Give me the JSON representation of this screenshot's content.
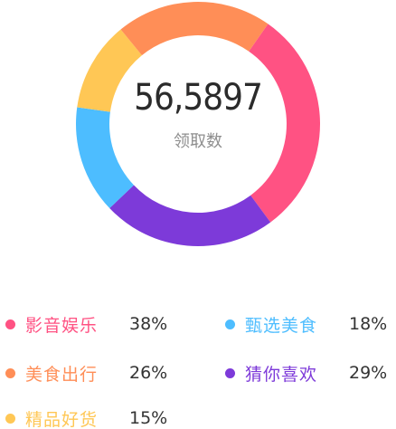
{
  "total": {
    "value": "56,5897",
    "label": "领取数"
  },
  "chart_data": {
    "type": "pie",
    "categories": [
      "影音娱乐",
      "甄选美食",
      "美食出行",
      "猜你喜欢",
      "精品好货"
    ],
    "values": [
      38,
      18,
      26,
      29,
      15
    ],
    "value_labels": [
      "38%",
      "18%",
      "26%",
      "29%",
      "15%"
    ],
    "colors": [
      "#ff5283",
      "#4dbdff",
      "#ff8e57",
      "#7d3ad9",
      "#ffc755"
    ],
    "legend_position": "bottom",
    "title": ""
  },
  "ring_order": [
    0,
    3,
    1,
    4,
    2
  ]
}
